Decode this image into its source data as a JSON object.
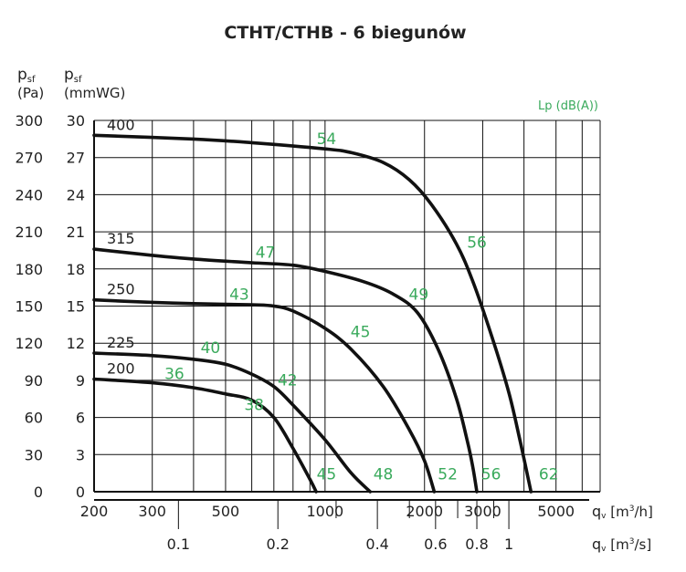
{
  "chart_data": {
    "type": "line",
    "title": "CTHT/CTHB - 6 biegunów",
    "y_left_label": {
      "main": "p",
      "sub": "sf",
      "unit": "(Pa)"
    },
    "y_right_label": {
      "main": "p",
      "sub": "sf",
      "unit": "(mmWG)"
    },
    "lp_header": "Lp (dB(A))",
    "x_label_m3h": {
      "main": "q",
      "sub": "v",
      "unit_pre": " [m",
      "sup": "3",
      "unit_post": "/h]"
    },
    "x_label_m3s": {
      "main": "q",
      "sub": "v",
      "unit_pre": " [m",
      "sup": "3",
      "unit_post": "/s]"
    },
    "x_scale": "log",
    "x_range_m3h": [
      200,
      6800
    ],
    "y_range_pa": [
      0,
      300
    ],
    "y_ticks_pa": [
      "0",
      "30",
      "60",
      "90",
      "120",
      "150",
      "180",
      "210",
      "240",
      "270",
      "300"
    ],
    "y_ticks_mmwg": [
      "0",
      "3",
      "6",
      "9",
      "12",
      "15",
      "18",
      "21",
      "24",
      "27",
      "30"
    ],
    "x_ticks_m3h": [
      {
        "v": 200,
        "label": "200"
      },
      {
        "v": 300,
        "label": "300"
      },
      {
        "v": 500,
        "label": "500"
      },
      {
        "v": 1000,
        "label": "1000"
      },
      {
        "v": 2000,
        "label": "2000"
      },
      {
        "v": 3000,
        "label": "3000"
      },
      {
        "v": 5000,
        "label": "5000"
      }
    ],
    "x_ticks_m3s": [
      {
        "v": 0.1,
        "label": "0.1"
      },
      {
        "v": 0.2,
        "label": "0.2"
      },
      {
        "v": 0.4,
        "label": "0.4"
      },
      {
        "v": 0.6,
        "label": "0.6"
      },
      {
        "v": 0.8,
        "label": "0.8"
      },
      {
        "v": 1,
        "label": "1"
      }
    ],
    "x_minor_ticks_m3s": [
      0.3,
      0.5,
      0.7,
      0.9
    ],
    "x_grid_m3h": [
      200,
      300,
      400,
      500,
      600,
      700,
      800,
      900,
      1000,
      2000,
      3000,
      4000,
      5000,
      6000
    ],
    "grid": true,
    "series": [
      {
        "name": "200",
        "points": [
          [
            200,
            91
          ],
          [
            300,
            88
          ],
          [
            400,
            84
          ],
          [
            500,
            79
          ],
          [
            600,
            74
          ],
          [
            700,
            60
          ],
          [
            800,
            35
          ],
          [
            900,
            10
          ],
          [
            940,
            0
          ]
        ],
        "noise": [
          {
            "label": "36",
            "x": 350,
            "y": 91
          },
          {
            "label": "38",
            "x": 610,
            "y": 66
          },
          {
            "label": "45",
            "x": 1010,
            "y": 10
          }
        ]
      },
      {
        "name": "225",
        "points": [
          [
            200,
            112
          ],
          [
            300,
            110
          ],
          [
            400,
            107
          ],
          [
            500,
            103
          ],
          [
            600,
            95
          ],
          [
            700,
            85
          ],
          [
            800,
            70
          ],
          [
            1000,
            42
          ],
          [
            1200,
            15
          ],
          [
            1370,
            0
          ]
        ],
        "noise": [
          {
            "label": "40",
            "x": 450,
            "y": 112
          },
          {
            "label": "42",
            "x": 770,
            "y": 86
          },
          {
            "label": "48",
            "x": 1500,
            "y": 10
          }
        ]
      },
      {
        "name": "250",
        "points": [
          [
            200,
            155
          ],
          [
            300,
            153
          ],
          [
            400,
            152
          ],
          [
            600,
            151
          ],
          [
            700,
            150
          ],
          [
            800,
            146
          ],
          [
            1000,
            132
          ],
          [
            1200,
            115
          ],
          [
            1500,
            85
          ],
          [
            1800,
            50
          ],
          [
            2000,
            25
          ],
          [
            2140,
            0
          ]
        ],
        "noise": [
          {
            "label": "43",
            "x": 550,
            "y": 155
          },
          {
            "label": "45",
            "x": 1280,
            "y": 125
          },
          {
            "label": "52",
            "x": 2350,
            "y": 10
          }
        ]
      },
      {
        "name": "315",
        "points": [
          [
            200,
            196
          ],
          [
            300,
            191
          ],
          [
            400,
            188
          ],
          [
            600,
            185
          ],
          [
            800,
            183
          ],
          [
            1000,
            178
          ],
          [
            1300,
            170
          ],
          [
            1600,
            160
          ],
          [
            1900,
            145
          ],
          [
            2200,
            115
          ],
          [
            2500,
            75
          ],
          [
            2700,
            40
          ],
          [
            2800,
            20
          ],
          [
            2880,
            0
          ]
        ],
        "noise": [
          {
            "label": "47",
            "x": 660,
            "y": 189
          },
          {
            "label": "49",
            "x": 1920,
            "y": 155
          },
          {
            "label": "56",
            "x": 3180,
            "y": 10
          }
        ]
      },
      {
        "name": "400",
        "points": [
          [
            200,
            288
          ],
          [
            400,
            285
          ],
          [
            600,
            282
          ],
          [
            1000,
            277
          ],
          [
            1200,
            274
          ],
          [
            1500,
            266
          ],
          [
            1800,
            252
          ],
          [
            2100,
            232
          ],
          [
            2500,
            200
          ],
          [
            2800,
            170
          ],
          [
            3200,
            125
          ],
          [
            3600,
            80
          ],
          [
            3900,
            40
          ],
          [
            4200,
            0
          ]
        ],
        "noise": [
          {
            "label": "54",
            "x": 1010,
            "y": 281
          },
          {
            "label": "56",
            "x": 2880,
            "y": 197
          },
          {
            "label": "62",
            "x": 4750,
            "y": 10
          }
        ]
      }
    ]
  }
}
